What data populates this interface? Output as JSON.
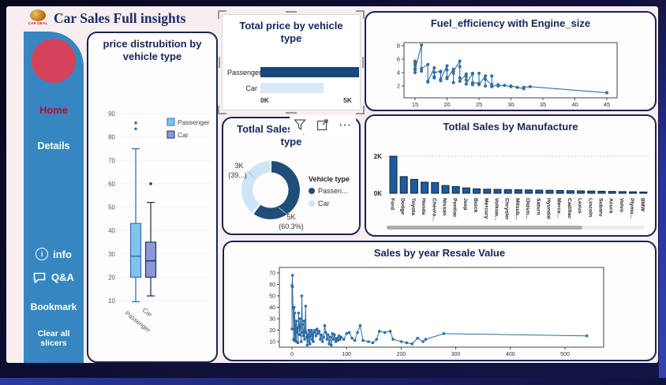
{
  "header": {
    "title": "Car Sales  Full insights",
    "logo_text": "CAR DEAL"
  },
  "sidebar": {
    "home": "Home",
    "details": "Details",
    "info": "info",
    "qa": "Q&A",
    "bookmark": "Bookmark",
    "clear": "Clear all slicers"
  },
  "colors": {
    "accent_dark_blue": "#1f4e79",
    "accent_light_blue": "#cfe4f6",
    "sidebar_blue": "#3687c1",
    "home_red": "#d6415c",
    "panel_border_navy": "#1b2550",
    "line_color": "#2e6da4"
  },
  "chart_data": [
    {
      "id": "price-distribution",
      "type": "boxplot",
      "title": "price distrubition by vehicle type",
      "yticks": [
        10,
        20,
        30,
        40,
        50,
        60,
        70,
        80,
        90
      ],
      "ylim": [
        10,
        90
      ],
      "categories": [
        "Passenger",
        "Car"
      ],
      "legend": [
        "Passenger",
        "Car"
      ],
      "series": [
        {
          "name": "Passenger",
          "low": 9.5,
          "q1": 20,
          "median": 29,
          "q3": 43,
          "high": 75,
          "outliers": [
            83.5,
            86
          ],
          "fill": "#85c1f0",
          "stroke": "#2e75b6"
        },
        {
          "name": "Car",
          "low": 12,
          "q1": 20,
          "median": 27,
          "q3": 35,
          "high": 52,
          "outliers": [
            60
          ],
          "fill": "#8b97d8",
          "stroke": "#1f3864"
        }
      ]
    },
    {
      "id": "total-price",
      "type": "bar-horizontal",
      "title": "Total price by vehicle type",
      "categories": [
        "Passenger",
        "Car"
      ],
      "values": [
        5.0,
        3.2
      ],
      "xmax": 5,
      "xticks": [
        "0K",
        "5K"
      ],
      "colors": [
        "#17477e",
        "#d9e9f8"
      ]
    },
    {
      "id": "sales-by-vehicle-type",
      "type": "donut",
      "title": "Totlal Sales by vehicle type",
      "legend_title": "Vehicle type",
      "slices": [
        {
          "name": "Passenger",
          "legend_label": "Passen...",
          "pct": 60.3,
          "label_lines": [
            "5K",
            "(60.3%)"
          ],
          "color": "#1f4e79"
        },
        {
          "name": "Car",
          "legend_label": "Car",
          "pct": 39.7,
          "label_lines": [
            "3K",
            "(39...)"
          ],
          "color": "#cfe4f6"
        }
      ]
    },
    {
      "id": "fuel-efficiency",
      "type": "line",
      "title": "Fuel_efficiency with Engine_size",
      "xticks": [
        15,
        20,
        25,
        30,
        35,
        40,
        45
      ],
      "yticks": [
        2,
        4,
        6,
        8
      ],
      "xlim": [
        14,
        46
      ],
      "ylim": [
        0.5,
        8.6
      ],
      "color": "#2e6da4",
      "points": [
        [
          15,
          4.0
        ],
        [
          15,
          4.6
        ],
        [
          15,
          5.1
        ],
        [
          15,
          5.5
        ],
        [
          15,
          5.7
        ],
        [
          15,
          4.4
        ],
        [
          16,
          8.1
        ],
        [
          16,
          4.2
        ],
        [
          16,
          4.6
        ],
        [
          17,
          5.2
        ],
        [
          17,
          2.6
        ],
        [
          17,
          2.7
        ],
        [
          18,
          4.7
        ],
        [
          18,
          3.4
        ],
        [
          18,
          3.2
        ],
        [
          18,
          4.0
        ],
        [
          19,
          4.2
        ],
        [
          19,
          2.8
        ],
        [
          19,
          4.1
        ],
        [
          19,
          3.0
        ],
        [
          20,
          5.0
        ],
        [
          20,
          3.3
        ],
        [
          20,
          4.4
        ],
        [
          20,
          3.1
        ],
        [
          21,
          4.5
        ],
        [
          21,
          3.9
        ],
        [
          21,
          2.5
        ],
        [
          21,
          4.2
        ],
        [
          22,
          5.7
        ],
        [
          22,
          4.9
        ],
        [
          22,
          3.2
        ],
        [
          22,
          2.7
        ],
        [
          23,
          3.8
        ],
        [
          23,
          2.9
        ],
        [
          23,
          3.4
        ],
        [
          23,
          2.3
        ],
        [
          24,
          3.9
        ],
        [
          24,
          2.2
        ],
        [
          24,
          3.8
        ],
        [
          24,
          2.5
        ],
        [
          25,
          2.4
        ],
        [
          25,
          3.9
        ],
        [
          25,
          2.2
        ],
        [
          26,
          3.5
        ],
        [
          26,
          2.0
        ],
        [
          26,
          3.0
        ],
        [
          27,
          2.2
        ],
        [
          27,
          3.5
        ],
        [
          27,
          1.9
        ],
        [
          28,
          2.2
        ],
        [
          28,
          2.0
        ],
        [
          29,
          2.1
        ],
        [
          30,
          1.9
        ],
        [
          30,
          2.0
        ],
        [
          31,
          1.8
        ],
        [
          32,
          1.6
        ],
        [
          32,
          1.8
        ],
        [
          33,
          1.9
        ],
        [
          45,
          1.0
        ]
      ]
    },
    {
      "id": "sales-by-manufacture",
      "type": "bar",
      "title": "Totlal Sales by Manufacture",
      "yticks": [
        "0K",
        "2K"
      ],
      "ymax": 2,
      "bar_color": "#1d5c9e",
      "categories": [
        "Ford",
        "Dodge",
        "Toyota",
        "Honda",
        "Chevro...",
        "Nissan",
        "Pontiac",
        "Jeep",
        "Buick",
        "Mercury",
        "Volksw...",
        "Chrysler",
        "Mitsub...",
        "Oldsm...",
        "Saturn",
        "Hyundai",
        "Merce...",
        "Cadillac",
        "Lexus",
        "Lincoln",
        "Subaru",
        "Acura",
        "Volvo",
        "Plymo...",
        "BMW"
      ],
      "values": [
        2.0,
        0.9,
        0.75,
        0.6,
        0.58,
        0.42,
        0.36,
        0.29,
        0.24,
        0.22,
        0.21,
        0.2,
        0.19,
        0.18,
        0.17,
        0.16,
        0.15,
        0.14,
        0.13,
        0.12,
        0.11,
        0.1,
        0.09,
        0.08,
        0.07
      ]
    },
    {
      "id": "sales-by-year",
      "type": "line",
      "title": "Sales by year Resale Value",
      "xticks": [
        0,
        100,
        200,
        300,
        400,
        500
      ],
      "yticks": [
        10,
        20,
        30,
        40,
        50,
        60,
        70
      ],
      "xlim": [
        -20,
        560
      ],
      "ylim": [
        5,
        73
      ],
      "color": "#2e6da4",
      "points": [
        [
          0,
          21
        ],
        [
          0,
          59
        ],
        [
          1,
          68
        ],
        [
          1,
          58
        ],
        [
          2,
          40
        ],
        [
          2,
          39
        ],
        [
          3,
          21
        ],
        [
          3,
          12
        ],
        [
          4,
          40
        ],
        [
          4,
          11
        ],
        [
          5,
          22
        ],
        [
          5,
          35
        ],
        [
          6,
          20
        ],
        [
          6,
          12
        ],
        [
          7,
          25
        ],
        [
          8,
          10
        ],
        [
          8,
          28
        ],
        [
          9,
          18
        ],
        [
          10,
          22
        ],
        [
          11,
          9
        ],
        [
          12,
          35
        ],
        [
          13,
          24
        ],
        [
          14,
          16
        ],
        [
          15,
          30
        ],
        [
          16,
          22
        ],
        [
          17,
          10
        ],
        [
          18,
          50
        ],
        [
          19,
          25
        ],
        [
          20,
          18
        ],
        [
          21,
          15
        ],
        [
          22,
          28
        ],
        [
          23,
          12
        ],
        [
          24,
          20
        ],
        [
          25,
          41
        ],
        [
          26,
          18
        ],
        [
          27,
          14
        ],
        [
          28,
          7
        ],
        [
          29,
          16
        ],
        [
          30,
          10
        ],
        [
          31,
          20
        ],
        [
          32,
          14
        ],
        [
          33,
          8
        ],
        [
          34,
          18
        ],
        [
          35,
          15
        ],
        [
          36,
          20
        ],
        [
          37,
          12
        ],
        [
          38,
          16
        ],
        [
          39,
          10
        ],
        [
          40,
          18
        ],
        [
          42,
          20
        ],
        [
          44,
          15
        ],
        [
          46,
          21
        ],
        [
          48,
          17
        ],
        [
          50,
          19
        ],
        [
          52,
          12
        ],
        [
          54,
          16
        ],
        [
          56,
          10
        ],
        [
          58,
          14
        ],
        [
          60,
          24
        ],
        [
          62,
          18
        ],
        [
          64,
          12
        ],
        [
          66,
          16
        ],
        [
          68,
          8
        ],
        [
          70,
          14
        ],
        [
          72,
          7
        ],
        [
          74,
          17
        ],
        [
          76,
          12
        ],
        [
          78,
          16
        ],
        [
          80,
          10
        ],
        [
          82,
          13
        ],
        [
          84,
          11
        ],
        [
          86,
          15
        ],
        [
          88,
          12
        ],
        [
          90,
          14
        ],
        [
          95,
          12
        ],
        [
          100,
          17
        ],
        [
          105,
          18
        ],
        [
          110,
          13
        ],
        [
          115,
          11
        ],
        [
          120,
          18
        ],
        [
          125,
          24
        ],
        [
          130,
          11
        ],
        [
          140,
          10
        ],
        [
          148,
          9
        ],
        [
          155,
          12
        ],
        [
          160,
          19
        ],
        [
          170,
          18
        ],
        [
          180,
          19
        ],
        [
          185,
          12
        ],
        [
          200,
          10
        ],
        [
          210,
          9
        ],
        [
          220,
          8
        ],
        [
          230,
          13
        ],
        [
          240,
          10
        ],
        [
          245,
          12
        ],
        [
          278,
          17
        ],
        [
          540,
          15
        ]
      ]
    }
  ]
}
